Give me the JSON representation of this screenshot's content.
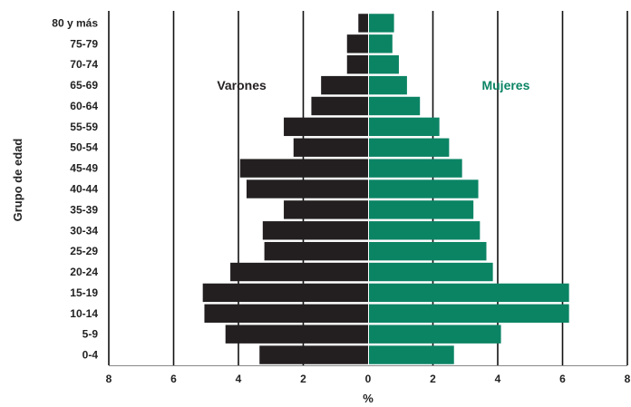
{
  "chart_data": {
    "type": "bar",
    "orientation": "horizontal",
    "subtype": "population-pyramid",
    "categories": [
      "0-4",
      "5-9",
      "10-14",
      "15-19",
      "20-24",
      "25-29",
      "30-34",
      "35-39",
      "40-44",
      "45-49",
      "50-54",
      "55-59",
      "60-64",
      "65-69",
      "70-74",
      "75-79",
      "80 y más"
    ],
    "series": [
      {
        "name": "Varones",
        "side": "left",
        "color": "#231f20",
        "values": [
          3.35,
          4.4,
          5.05,
          5.1,
          4.25,
          3.2,
          3.25,
          2.6,
          3.75,
          3.95,
          2.3,
          2.6,
          1.75,
          1.45,
          0.65,
          0.65,
          0.3
        ]
      },
      {
        "name": "Mujeres",
        "side": "right",
        "color": "#0b8464",
        "values": [
          2.65,
          4.1,
          6.2,
          6.2,
          3.85,
          3.65,
          3.45,
          3.25,
          3.4,
          2.9,
          2.5,
          2.2,
          1.6,
          1.2,
          0.95,
          0.75,
          0.8
        ]
      }
    ],
    "xlabel": "%",
    "ylabel": "Grupo de edad",
    "xlim": [
      -8,
      8
    ],
    "xticks": [
      -8,
      -6,
      -4,
      -2,
      0,
      2,
      4,
      6,
      8
    ],
    "xtick_labels": [
      "8",
      "6",
      "4",
      "2",
      "0",
      "2",
      "4",
      "6",
      "8"
    ],
    "grid": "vertical",
    "legend": "inline-labels"
  }
}
